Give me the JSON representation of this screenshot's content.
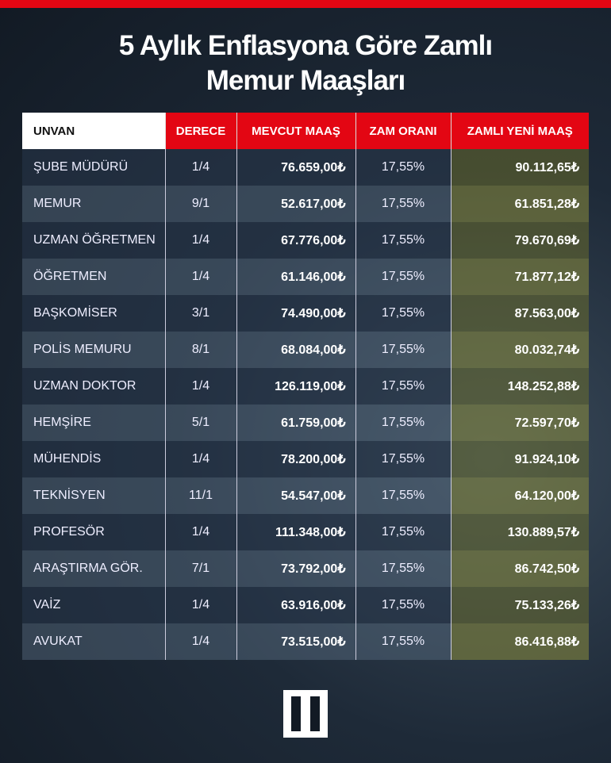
{
  "header": {
    "title_lines": [
      "5 Aylık Enflasyona Göre Zamlı",
      "Memur Maaşları"
    ]
  },
  "table": {
    "columns": [
      "UNVAN",
      "DERECE",
      "MEVCUT MAAŞ",
      "ZAM ORANI",
      "ZAMLI YENİ MAAŞ"
    ],
    "rows": [
      [
        "ŞUBE MÜDÜRÜ",
        "1/4",
        "76.659,00₺",
        "17,55%",
        "90.112,65₺"
      ],
      [
        "MEMUR",
        "9/1",
        "52.617,00₺",
        "17,55%",
        "61.851,28₺"
      ],
      [
        "UZMAN ÖĞRETMEN",
        "1/4",
        "67.776,00₺",
        "17,55%",
        "79.670,69₺"
      ],
      [
        "ÖĞRETMEN",
        "1/4",
        "61.146,00₺",
        "17,55%",
        "71.877,12₺"
      ],
      [
        "BAŞKOMİSER",
        "3/1",
        "74.490,00₺",
        "17,55%",
        "87.563,00₺"
      ],
      [
        "POLİS MEMURU",
        "8/1",
        "68.084,00₺",
        "17,55%",
        "80.032,74₺"
      ],
      [
        "UZMAN DOKTOR",
        "1/4",
        "126.119,00₺",
        "17,55%",
        "148.252,88₺"
      ],
      [
        "HEMŞİRE",
        "5/1",
        "61.759,00₺",
        "17,55%",
        "72.597,70₺"
      ],
      [
        "MÜHENDİS",
        "1/4",
        "78.200,00₺",
        "17,55%",
        "91.924,10₺"
      ],
      [
        "TEKNİSYEN",
        "11/1",
        "54.547,00₺",
        "17,55%",
        "64.120,00₺"
      ],
      [
        "PROFESÖR",
        "1/4",
        "111.348,00₺",
        "17,55%",
        "130.889,57₺"
      ],
      [
        "ARAŞTIRMA GÖR.",
        "7/1",
        "73.792,00₺",
        "17,55%",
        "86.742,50₺"
      ],
      [
        "VAİZ",
        "1/4",
        "63.916,00₺",
        "17,55%",
        "75.133,26₺"
      ],
      [
        "AVUKAT",
        "1/4",
        "73.515,00₺",
        "17,55%",
        "86.416,88₺"
      ]
    ]
  }
}
